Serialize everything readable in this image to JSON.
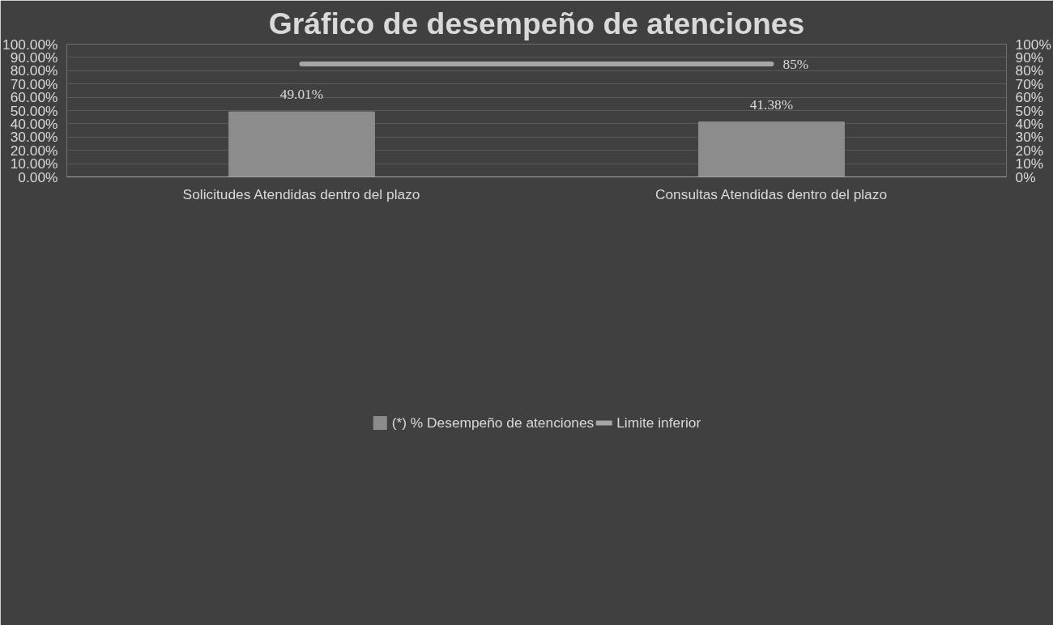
{
  "chart_data": {
    "type": "bar",
    "title": "Gráfico de desempeño de atenciones",
    "categories": [
      "Solicitudes Atendidas dentro del plazo",
      "Consultas Atendidas dentro del plazo"
    ],
    "series": [
      {
        "name": "(*) % Desempeño de atenciones",
        "color": "#8c8c8c",
        "values": [
          49.01,
          41.38
        ],
        "value_labels": [
          "49.01%",
          "41.38%"
        ]
      },
      {
        "name": "Limite inferior",
        "type": "line",
        "axis": "y2",
        "color": "#a6a6a6",
        "values": [
          85,
          85
        ],
        "value_labels": [
          null,
          "85%"
        ]
      }
    ],
    "ylim": [
      0,
      100
    ],
    "yticks": [
      {
        "value": 0,
        "label": "0.00%"
      },
      {
        "value": 10,
        "label": "10.00%"
      },
      {
        "value": 20,
        "label": "20.00%"
      },
      {
        "value": 30,
        "label": "30.00%"
      },
      {
        "value": 40,
        "label": "40.00%"
      },
      {
        "value": 50,
        "label": "50.00%"
      },
      {
        "value": 60,
        "label": "60.00%"
      },
      {
        "value": 70,
        "label": "70.00%"
      },
      {
        "value": 80,
        "label": "80.00%"
      },
      {
        "value": 90,
        "label": "90.00%"
      },
      {
        "value": 100,
        "label": "100.00%"
      }
    ],
    "y2lim": [
      0,
      100
    ],
    "y2ticks": [
      {
        "value": 0,
        "label": "0%"
      },
      {
        "value": 10,
        "label": "10%"
      },
      {
        "value": 20,
        "label": "20%"
      },
      {
        "value": 30,
        "label": "30%"
      },
      {
        "value": 40,
        "label": "40%"
      },
      {
        "value": 50,
        "label": "50%"
      },
      {
        "value": 60,
        "label": "60%"
      },
      {
        "value": 70,
        "label": "70%"
      },
      {
        "value": 80,
        "label": "80%"
      },
      {
        "value": 90,
        "label": "90%"
      },
      {
        "value": 100,
        "label": "100%"
      }
    ],
    "grid": "y",
    "legend": "bottom"
  }
}
